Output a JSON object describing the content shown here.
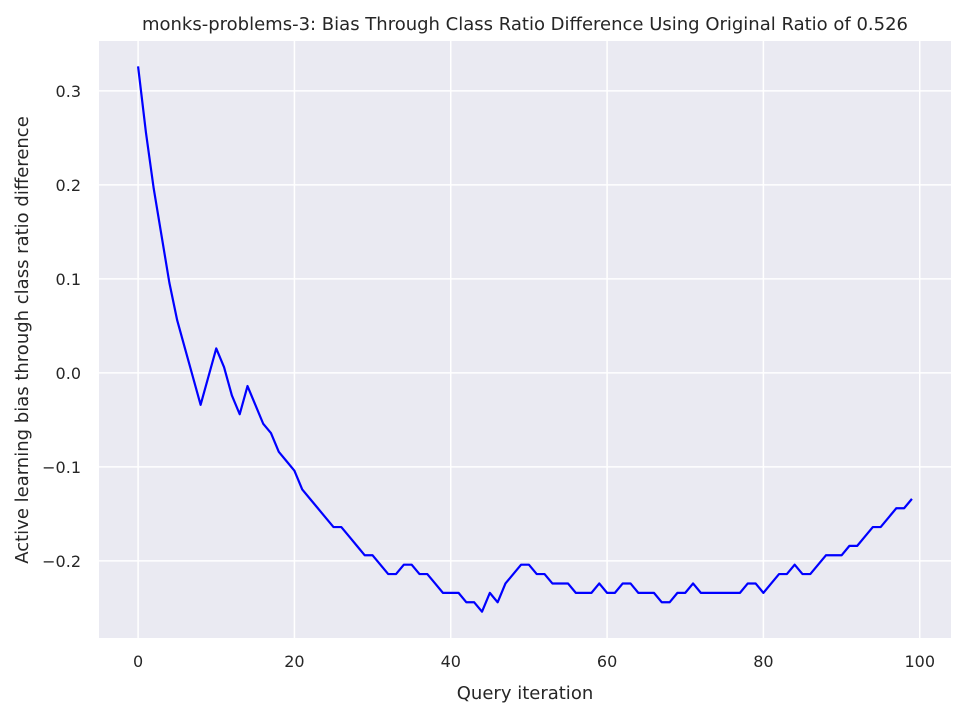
{
  "chart_data": {
    "type": "line",
    "title": "monks-problems-3: Bias Through Class Ratio Difference Using Original Ratio of 0.526",
    "xlabel": "Query iteration",
    "ylabel": "Active learning bias through class ratio difference",
    "xlim": [
      -5,
      104
    ],
    "ylim": [
      -0.282,
      0.353
    ],
    "xticks": [
      0,
      20,
      40,
      60,
      80,
      100
    ],
    "xtick_labels": [
      "0",
      "20",
      "40",
      "60",
      "80",
      "100"
    ],
    "yticks": [
      -0.2,
      -0.1,
      0.0,
      0.1,
      0.2,
      0.3
    ],
    "ytick_labels": [
      "−0.2",
      "−0.1",
      "0.0",
      "0.1",
      "0.2",
      "0.3"
    ],
    "grid": true,
    "background_color": "#eaeaf2",
    "grid_color": "#ffffff",
    "series": [
      {
        "color": "#0000ff",
        "x": [
          0,
          1,
          2,
          3,
          4,
          5,
          6,
          7,
          8,
          9,
          10,
          11,
          12,
          13,
          14,
          15,
          16,
          17,
          18,
          19,
          20,
          21,
          22,
          23,
          24,
          25,
          26,
          27,
          28,
          29,
          30,
          31,
          32,
          33,
          34,
          35,
          36,
          37,
          38,
          39,
          40,
          41,
          42,
          43,
          44,
          45,
          46,
          47,
          48,
          49,
          50,
          51,
          52,
          53,
          54,
          55,
          56,
          57,
          58,
          59,
          60,
          61,
          62,
          63,
          64,
          65,
          66,
          67,
          68,
          69,
          70,
          71,
          72,
          73,
          74,
          75,
          76,
          77,
          78,
          79,
          80,
          81,
          82,
          83,
          84,
          85,
          86,
          87,
          88,
          89,
          90,
          91,
          92,
          93,
          94,
          95,
          96,
          97,
          98,
          99
        ],
        "y": [
          0.326,
          0.256,
          0.196,
          0.146,
          0.096,
          0.056,
          0.026,
          -0.004,
          -0.034,
          -0.004,
          0.026,
          0.006,
          -0.024,
          -0.044,
          -0.014,
          -0.034,
          -0.054,
          -0.064,
          -0.084,
          -0.094,
          -0.104,
          -0.124,
          -0.134,
          -0.144,
          -0.154,
          -0.164,
          -0.164,
          -0.174,
          -0.184,
          -0.194,
          -0.194,
          -0.204,
          -0.214,
          -0.214,
          -0.204,
          -0.204,
          -0.214,
          -0.214,
          -0.224,
          -0.234,
          -0.234,
          -0.234,
          -0.244,
          -0.244,
          -0.254,
          -0.234,
          -0.244,
          -0.224,
          -0.214,
          -0.204,
          -0.204,
          -0.214,
          -0.214,
          -0.224,
          -0.224,
          -0.224,
          -0.234,
          -0.234,
          -0.234,
          -0.224,
          -0.234,
          -0.234,
          -0.224,
          -0.224,
          -0.234,
          -0.234,
          -0.234,
          -0.244,
          -0.244,
          -0.234,
          -0.234,
          -0.224,
          -0.234,
          -0.234,
          -0.234,
          -0.234,
          -0.234,
          -0.234,
          -0.224,
          -0.224,
          -0.234,
          -0.224,
          -0.214,
          -0.214,
          -0.204,
          -0.214,
          -0.214,
          -0.204,
          -0.194,
          -0.194,
          -0.194,
          -0.184,
          -0.184,
          -0.174,
          -0.164,
          -0.164,
          -0.154,
          -0.144,
          -0.144,
          -0.134
        ]
      }
    ]
  }
}
